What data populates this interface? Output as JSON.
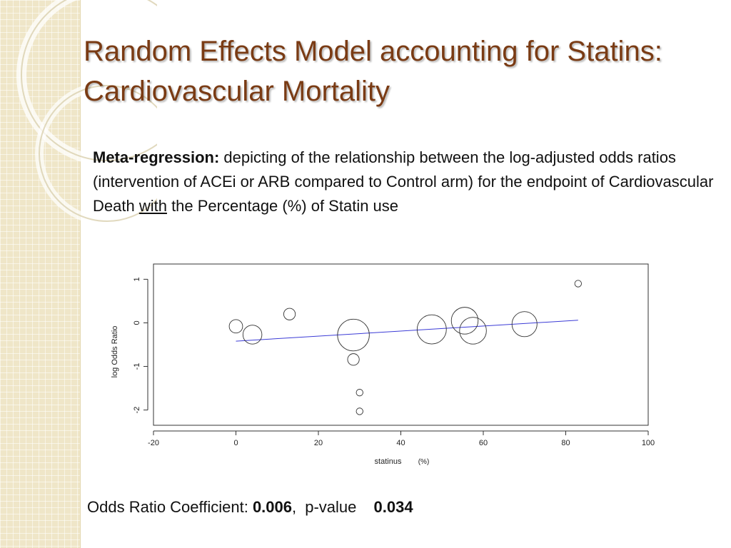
{
  "slide": {
    "title_line1": "Random Effects Model accounting for Statins:",
    "title_line2": "Cardiovascular Mortality",
    "description": {
      "bold_lead": "Meta-regression:",
      "text_before_underline": " depicting of the relationship between the log-adjusted odds ratios (intervention of ACEi or ARB compared to Control arm) for the endpoint of Cardiovascular Death ",
      "underlined": "with",
      "text_after_underline": " the Percentage (%) of Statin use"
    },
    "footer": {
      "coefficient_label": "Odds Ratio Coefficient: ",
      "coefficient_value": "0.006",
      "separator": ",",
      "pvalue_label": "p-value",
      "pvalue_value": "0.034"
    }
  },
  "colors": {
    "title": "#7a3b14",
    "regression_line": "#3b3bd6",
    "points": "#333333"
  },
  "chart_data": {
    "type": "scatter",
    "title": "",
    "xlabel": "statinus",
    "xlabel_unit": "(%)",
    "ylabel": "log Odds Ratio",
    "xlim": [
      -20,
      100
    ],
    "ylim": [
      -2.35,
      1.35
    ],
    "xticks": [
      -20,
      0,
      20,
      40,
      60,
      80,
      100
    ],
    "yticks": [
      1,
      0,
      -1,
      -2
    ],
    "grid": false,
    "points": [
      {
        "x": 0,
        "y": -0.08,
        "weight": 0.8
      },
      {
        "x": 4,
        "y": -0.27,
        "weight": 1.6
      },
      {
        "x": 13,
        "y": 0.2,
        "weight": 0.6
      },
      {
        "x": 28.5,
        "y": -0.28,
        "weight": 4.5
      },
      {
        "x": 28.5,
        "y": -0.84,
        "weight": 0.6
      },
      {
        "x": 30,
        "y": -1.6,
        "weight": 0.2
      },
      {
        "x": 30,
        "y": -2.03,
        "weight": 0.2
      },
      {
        "x": 47.5,
        "y": -0.15,
        "weight": 3.8
      },
      {
        "x": 55.5,
        "y": 0.05,
        "weight": 3.2
      },
      {
        "x": 57.5,
        "y": -0.18,
        "weight": 3.2
      },
      {
        "x": 70,
        "y": -0.03,
        "weight": 2.8
      },
      {
        "x": 83,
        "y": 0.9,
        "weight": 0.2
      }
    ],
    "regression_line": {
      "x": [
        0,
        83
      ],
      "y": [
        -0.42,
        0.06
      ]
    }
  }
}
